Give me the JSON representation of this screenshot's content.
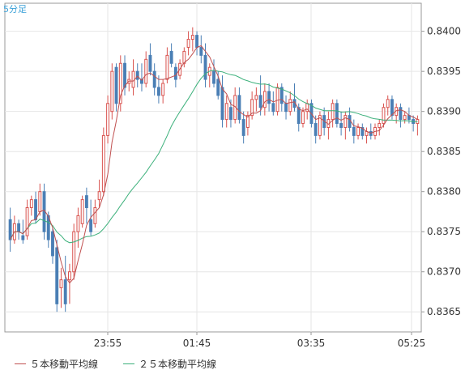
{
  "chart_data": {
    "type": "candlestick",
    "title": "5分足",
    "y_ticks": [
      "0.8365",
      "0.8370",
      "0.8375",
      "0.8380",
      "0.8385",
      "0.8390",
      "0.8395",
      "0.8400"
    ],
    "x_ticks": [
      "23:55",
      "01:45",
      "03:35",
      "05:25"
    ],
    "ylim": [
      0.83625,
      0.84035
    ],
    "grid": true,
    "legend_position": "bottom",
    "colors": {
      "up": "#d9534f",
      "down": "#4a7fb5",
      "ma5": "#c05050",
      "ma25": "#3bb07a",
      "grid": "#e6e6e6"
    },
    "candles": [
      [
        0.83765,
        0.8378,
        0.83725,
        0.8374
      ],
      [
        0.8374,
        0.8377,
        0.83735,
        0.8376
      ],
      [
        0.8376,
        0.83765,
        0.8374,
        0.8375
      ],
      [
        0.83745,
        0.83765,
        0.83735,
        0.8374
      ],
      [
        0.83745,
        0.8379,
        0.8374,
        0.8378
      ],
      [
        0.8378,
        0.83795,
        0.8377,
        0.8379
      ],
      [
        0.8379,
        0.838,
        0.8376,
        0.83765
      ],
      [
        0.83775,
        0.8381,
        0.8377,
        0.838
      ],
      [
        0.838,
        0.8381,
        0.8374,
        0.8375
      ],
      [
        0.8377,
        0.83775,
        0.8373,
        0.8374
      ],
      [
        0.8375,
        0.83755,
        0.8371,
        0.8372
      ],
      [
        0.8373,
        0.8374,
        0.8365,
        0.8366
      ],
      [
        0.8368,
        0.83705,
        0.83655,
        0.8369
      ],
      [
        0.8369,
        0.8372,
        0.8365,
        0.8366
      ],
      [
        0.8369,
        0.8371,
        0.8366,
        0.837
      ],
      [
        0.837,
        0.8376,
        0.8369,
        0.8375
      ],
      [
        0.8375,
        0.8378,
        0.8373,
        0.8377
      ],
      [
        0.8376,
        0.83795,
        0.83755,
        0.8379
      ],
      [
        0.83795,
        0.83805,
        0.8376,
        0.8378
      ],
      [
        0.83765,
        0.8379,
        0.83745,
        0.8375
      ],
      [
        0.8376,
        0.8379,
        0.83755,
        0.8378
      ],
      [
        0.8379,
        0.83815,
        0.8378,
        0.838
      ],
      [
        0.838,
        0.8388,
        0.83795,
        0.8387
      ],
      [
        0.8387,
        0.8392,
        0.8386,
        0.8391
      ],
      [
        0.839,
        0.8396,
        0.8389,
        0.8395
      ],
      [
        0.83955,
        0.8396,
        0.839,
        0.8391
      ],
      [
        0.8391,
        0.8397,
        0.839,
        0.8396
      ],
      [
        0.8396,
        0.8397,
        0.8392,
        0.8393
      ],
      [
        0.83935,
        0.8395,
        0.83925,
        0.8394
      ],
      [
        0.8393,
        0.83965,
        0.8392,
        0.8395
      ],
      [
        0.8395,
        0.8396,
        0.8393,
        0.8394
      ],
      [
        0.8394,
        0.8396,
        0.83925,
        0.83935
      ],
      [
        0.83935,
        0.83975,
        0.8393,
        0.83965
      ],
      [
        0.8397,
        0.83985,
        0.83945,
        0.8395
      ],
      [
        0.8395,
        0.8396,
        0.8392,
        0.8393
      ],
      [
        0.8393,
        0.83945,
        0.8391,
        0.8392
      ],
      [
        0.8392,
        0.8394,
        0.8391,
        0.83935
      ],
      [
        0.8394,
        0.8398,
        0.83935,
        0.8397
      ],
      [
        0.83975,
        0.83985,
        0.83955,
        0.8396
      ],
      [
        0.83955,
        0.8396,
        0.8393,
        0.8394
      ],
      [
        0.83945,
        0.83965,
        0.8394,
        0.8396
      ],
      [
        0.8396,
        0.8398,
        0.83955,
        0.83975
      ],
      [
        0.8398,
        0.84,
        0.8397,
        0.8399
      ],
      [
        0.8399,
        0.84005,
        0.83975,
        0.83995
      ],
      [
        0.83995,
        0.84,
        0.8397,
        0.8398
      ],
      [
        0.8398,
        0.83995,
        0.8396,
        0.8397
      ],
      [
        0.8397,
        0.83985,
        0.8393,
        0.8394
      ],
      [
        0.83945,
        0.8396,
        0.8393,
        0.83955
      ],
      [
        0.8395,
        0.83965,
        0.8393,
        0.83935
      ],
      [
        0.8394,
        0.8395,
        0.83915,
        0.8392
      ],
      [
        0.8393,
        0.83945,
        0.8388,
        0.8389
      ],
      [
        0.8389,
        0.8392,
        0.8388,
        0.8391
      ],
      [
        0.83905,
        0.83915,
        0.8388,
        0.8389
      ],
      [
        0.8389,
        0.8393,
        0.83885,
        0.8392
      ],
      [
        0.8392,
        0.8393,
        0.83885,
        0.8389
      ],
      [
        0.8389,
        0.839,
        0.8386,
        0.8387
      ],
      [
        0.8388,
        0.839,
        0.8387,
        0.83895
      ],
      [
        0.83895,
        0.83925,
        0.8389,
        0.83915
      ],
      [
        0.83915,
        0.8393,
        0.839,
        0.8392
      ],
      [
        0.8392,
        0.83945,
        0.83895,
        0.83905
      ],
      [
        0.83905,
        0.83935,
        0.83895,
        0.83925
      ],
      [
        0.83925,
        0.83935,
        0.839,
        0.8391
      ],
      [
        0.8391,
        0.83925,
        0.83895,
        0.839
      ],
      [
        0.839,
        0.83935,
        0.83895,
        0.8393
      ],
      [
        0.8393,
        0.83935,
        0.839,
        0.8391
      ],
      [
        0.8391,
        0.8392,
        0.8389,
        0.839
      ],
      [
        0.839,
        0.83925,
        0.83895,
        0.83915
      ],
      [
        0.83915,
        0.83935,
        0.839,
        0.83905
      ],
      [
        0.83905,
        0.8391,
        0.83875,
        0.83885
      ],
      [
        0.83885,
        0.83905,
        0.8388,
        0.839
      ],
      [
        0.839,
        0.83915,
        0.8389,
        0.8391
      ],
      [
        0.8391,
        0.83915,
        0.8388,
        0.83885
      ],
      [
        0.83885,
        0.83895,
        0.8386,
        0.8387
      ],
      [
        0.8387,
        0.839,
        0.83865,
        0.83895
      ],
      [
        0.83895,
        0.83905,
        0.8387,
        0.8388
      ],
      [
        0.8388,
        0.839,
        0.83865,
        0.8389
      ],
      [
        0.8389,
        0.83915,
        0.8388,
        0.8391
      ],
      [
        0.8391,
        0.83915,
        0.8388,
        0.83885
      ],
      [
        0.83885,
        0.839,
        0.8387,
        0.8388
      ],
      [
        0.8388,
        0.839,
        0.83865,
        0.83895
      ],
      [
        0.83895,
        0.83905,
        0.83875,
        0.8388
      ],
      [
        0.8388,
        0.8389,
        0.8386,
        0.8387
      ],
      [
        0.8387,
        0.83885,
        0.83865,
        0.8388
      ],
      [
        0.8388,
        0.83885,
        0.83865,
        0.8387
      ],
      [
        0.8387,
        0.8388,
        0.8386,
        0.83875
      ],
      [
        0.83875,
        0.83885,
        0.83865,
        0.8387
      ],
      [
        0.8387,
        0.83885,
        0.83865,
        0.8388
      ],
      [
        0.8388,
        0.8389,
        0.8387,
        0.83885
      ],
      [
        0.83885,
        0.8391,
        0.8388,
        0.83905
      ],
      [
        0.83905,
        0.8392,
        0.83895,
        0.83915
      ],
      [
        0.83915,
        0.8392,
        0.8389,
        0.83895
      ],
      [
        0.83895,
        0.8391,
        0.83885,
        0.83905
      ],
      [
        0.83905,
        0.8391,
        0.8388,
        0.8389
      ],
      [
        0.8389,
        0.839,
        0.83885,
        0.83895
      ],
      [
        0.83895,
        0.83905,
        0.83885,
        0.8389
      ],
      [
        0.8389,
        0.83895,
        0.83875,
        0.83885
      ],
      [
        0.83885,
        0.83895,
        0.8387,
        0.8389
      ]
    ],
    "series": [
      {
        "name": "５本移動平均線"
      },
      {
        "name": "２５本移動平均線"
      }
    ]
  },
  "legend": {
    "ma5": "５本移動平均線",
    "ma25": "２５本移動平均線"
  }
}
